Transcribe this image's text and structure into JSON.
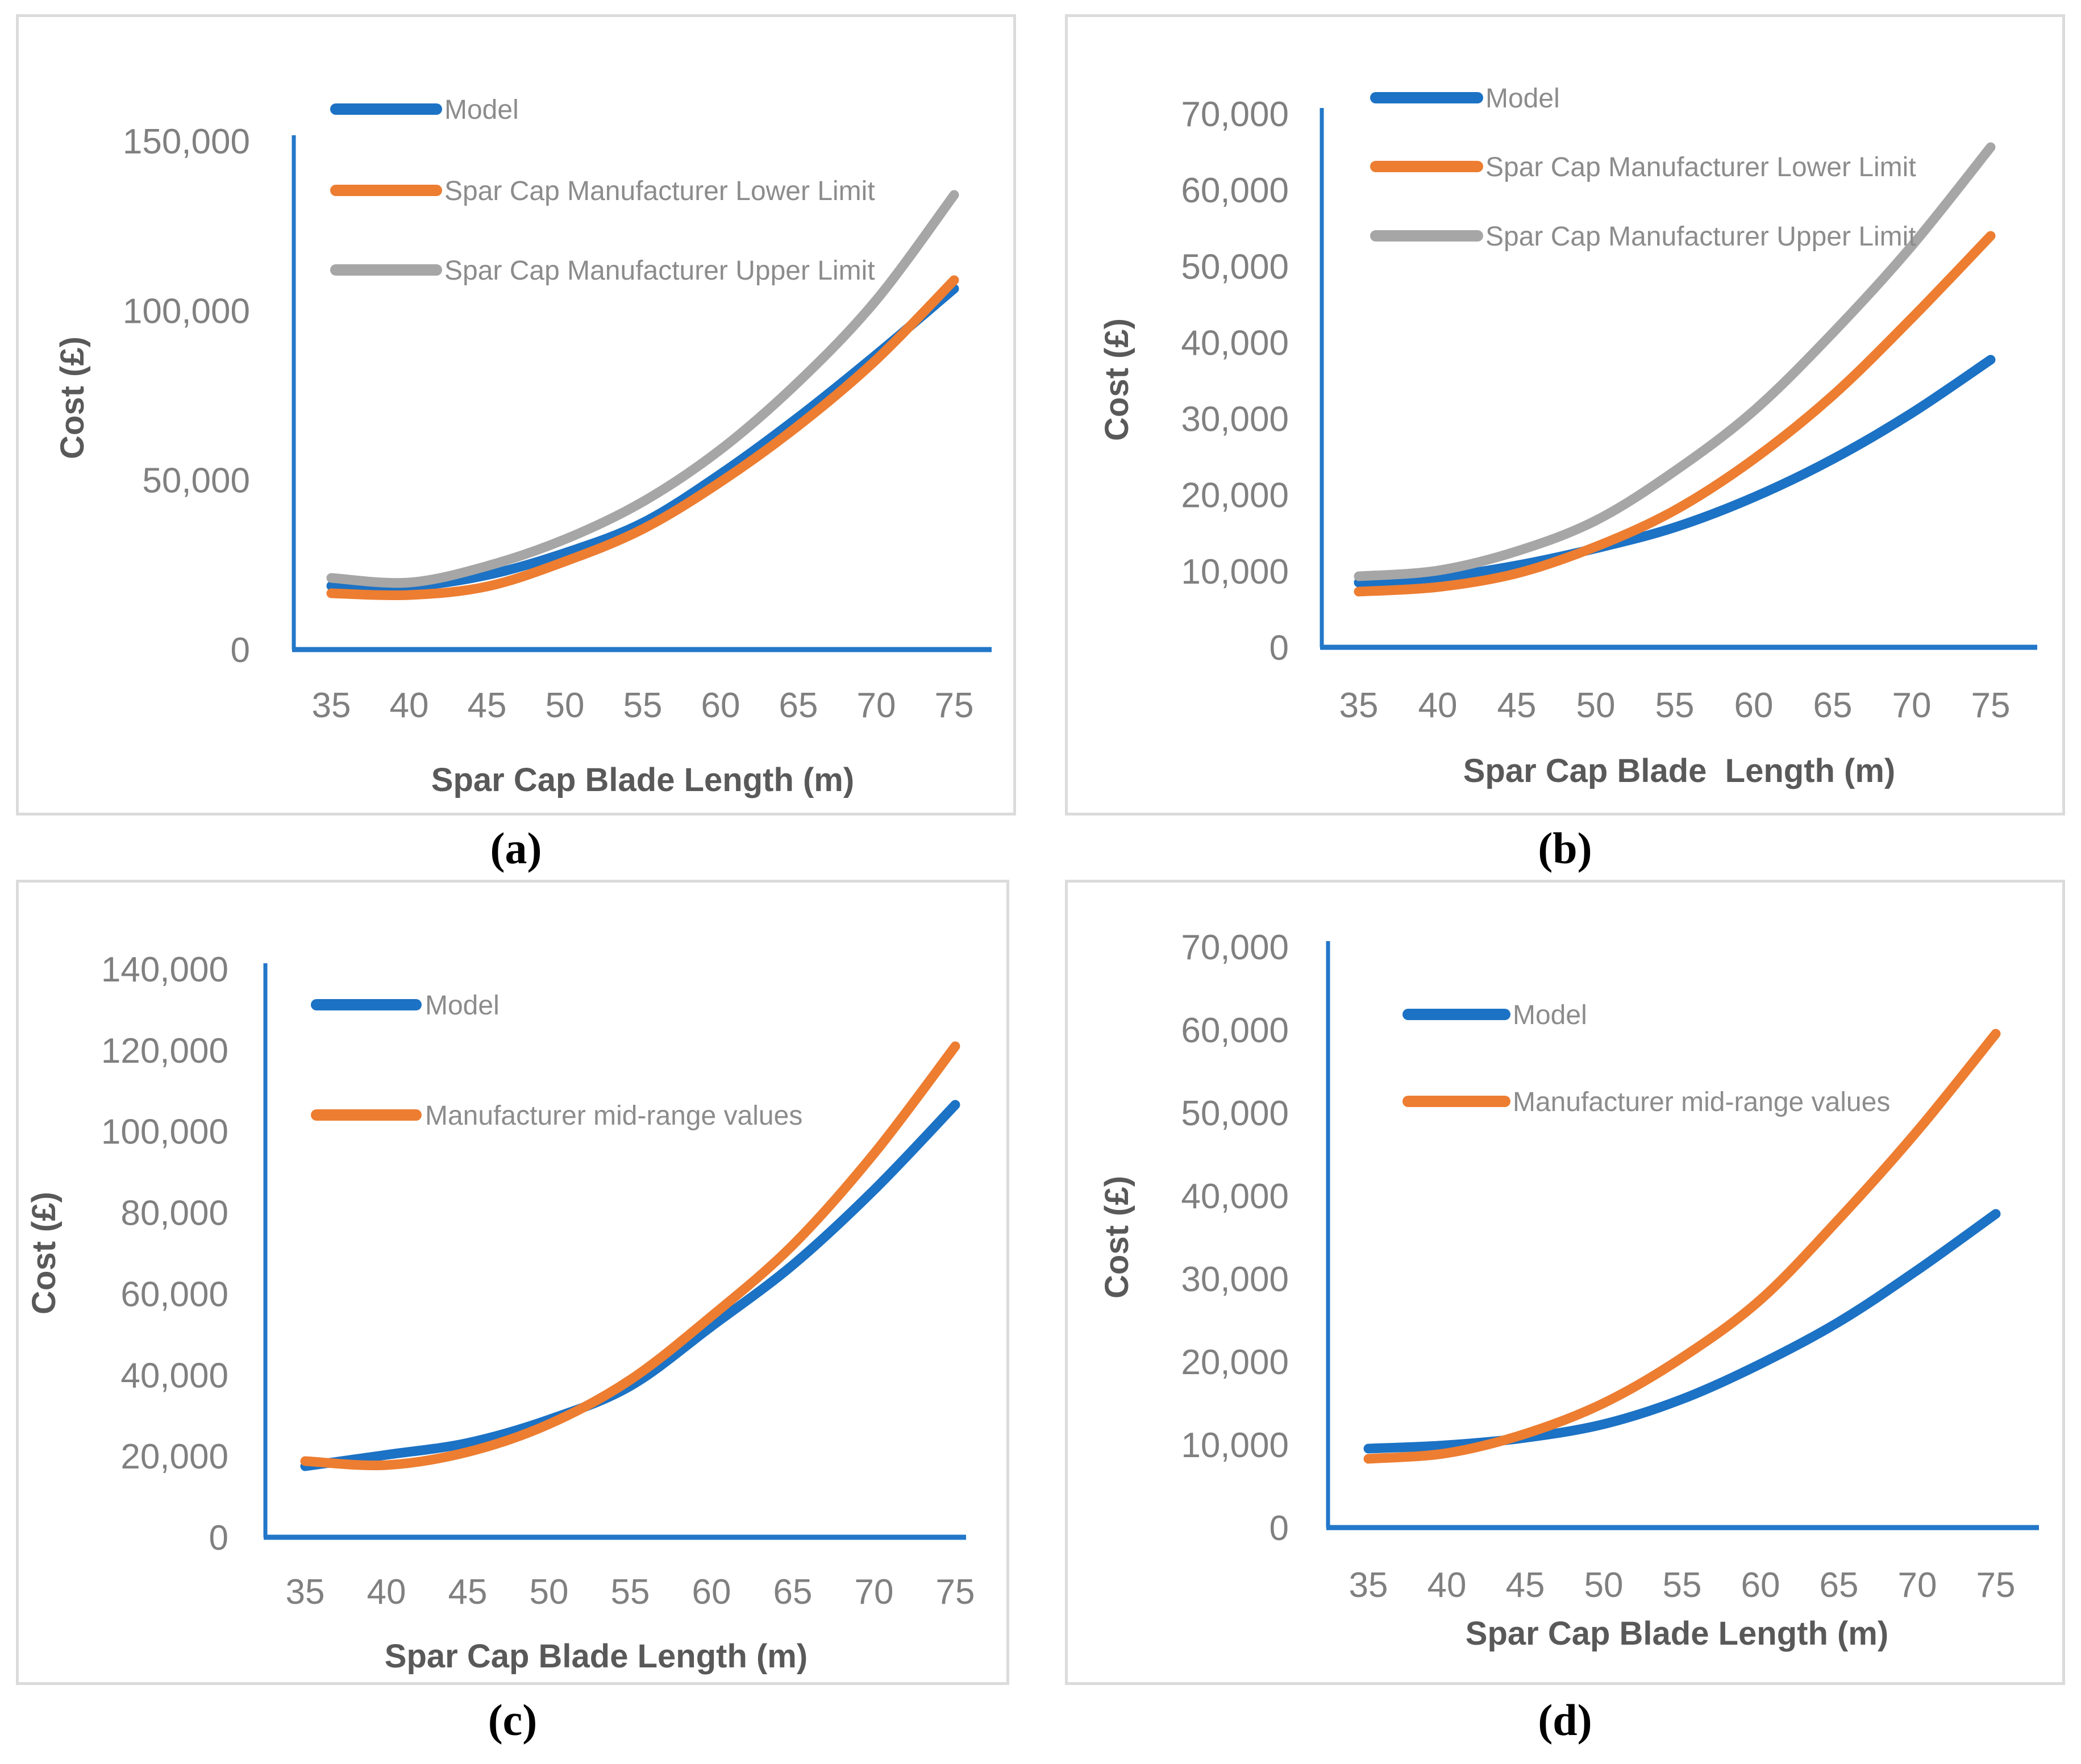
{
  "colors": {
    "blue": "#1c72c4",
    "orange": "#ed7d31",
    "gray": "#a6a6a6",
    "axis_line": "#2277c8",
    "tick_text": "#808080",
    "legend_text": "#8c8c8c",
    "axis_title_text": "#595959",
    "panel_border": "#dbdbdb",
    "caption_text": "#000000"
  },
  "chart_data": [
    {
      "type": "line",
      "caption": "(a)",
      "xlabel": "Spar Cap Blade Length (m)",
      "ylabel": "Cost (£)",
      "x": [
        35,
        40,
        45,
        50,
        55,
        60,
        65,
        70,
        75
      ],
      "ylim": [
        0,
        150000
      ],
      "ytick_step": 50000,
      "grid": false,
      "legend_position": "inside-top-left",
      "series": [
        {
          "name": "Model",
          "color_key": "blue",
          "values": [
            18800,
            18600,
            22000,
            28500,
            37300,
            51800,
            68500,
            87000,
            106500
          ]
        },
        {
          "name": "Spar Cap Manufacturer Lower Limit",
          "color_key": "orange",
          "values": [
            16600,
            16100,
            18600,
            26000,
            35500,
            49500,
            66000,
            85500,
            109000
          ]
        },
        {
          "name": "Spar Cap Manufacturer Upper Limit",
          "color_key": "gray",
          "values": [
            21200,
            19800,
            24700,
            32500,
            43500,
            59000,
            79000,
            103000,
            134000
          ]
        }
      ]
    },
    {
      "type": "line",
      "caption": "(b)",
      "xlabel": "Spar Cap Blade  Length (m)",
      "ylabel": "Cost (£)",
      "x": [
        35,
        40,
        45,
        50,
        55,
        60,
        65,
        70,
        75
      ],
      "ylim": [
        0,
        70000
      ],
      "ytick_step": 10000,
      "grid": false,
      "legend_position": "inside-top-left",
      "series": [
        {
          "name": "Model",
          "color_key": "blue",
          "values": [
            8500,
            9200,
            10700,
            13000,
            15700,
            19700,
            24700,
            30700,
            37700
          ]
        },
        {
          "name": "Spar Cap Manufacturer Lower Limit",
          "color_key": "orange",
          "values": [
            7300,
            7900,
            9700,
            13200,
            18000,
            24700,
            33000,
            43200,
            54000
          ]
        },
        {
          "name": "Spar Cap Manufacturer Upper Limit",
          "color_key": "gray",
          "values": [
            9300,
            10100,
            12600,
            16600,
            23100,
            31000,
            41200,
            52600,
            65600
          ]
        }
      ]
    },
    {
      "type": "line",
      "caption": "(c)",
      "xlabel": "Spar Cap Blade Length (m)",
      "ylabel": "Cost (£)",
      "x": [
        35,
        40,
        45,
        50,
        55,
        60,
        65,
        70,
        75
      ],
      "ylim": [
        0,
        140000
      ],
      "ytick_step": 20000,
      "grid": false,
      "legend_position": "inside-top-left",
      "series": [
        {
          "name": "Model",
          "color_key": "blue",
          "values": [
            17500,
            20300,
            23200,
            29000,
            37300,
            52000,
            67000,
            85500,
            106500
          ]
        },
        {
          "name": "Manufacturer mid-range values",
          "color_key": "orange",
          "values": [
            18800,
            17800,
            21000,
            27800,
            38800,
            54500,
            72000,
            94500,
            121000
          ]
        }
      ]
    },
    {
      "type": "line",
      "caption": "(d)",
      "xlabel": "Spar Cap Blade Length (m)",
      "ylabel": "Cost (£)",
      "x": [
        35,
        40,
        45,
        50,
        55,
        60,
        65,
        70,
        75
      ],
      "ylim": [
        0,
        70000
      ],
      "ytick_step": 10000,
      "grid": false,
      "legend_position": "inside-top-left",
      "series": [
        {
          "name": "Model",
          "color_key": "blue",
          "values": [
            9500,
            9900,
            10800,
            12500,
            15500,
            19700,
            24800,
            31000,
            37800
          ]
        },
        {
          "name": "Manufacturer mid-range values",
          "color_key": "orange",
          "values": [
            8300,
            9000,
            11300,
            15000,
            20500,
            27500,
            37200,
            47800,
            59500
          ]
        }
      ]
    }
  ]
}
